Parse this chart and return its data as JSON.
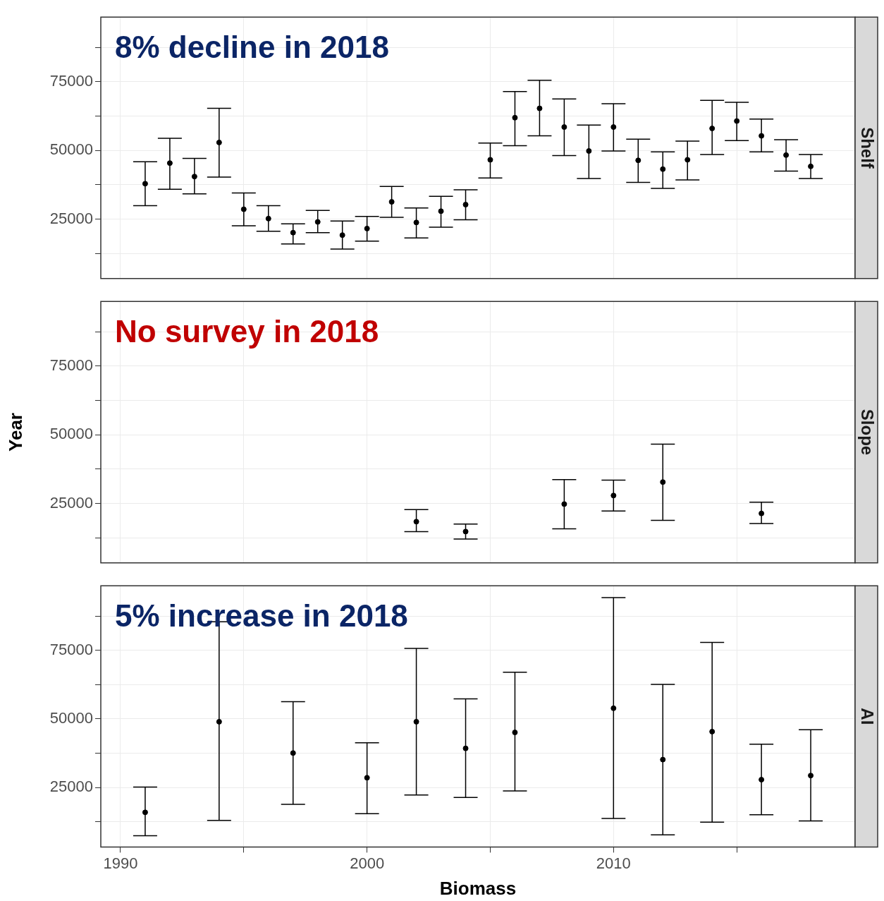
{
  "chart_data": [
    {
      "type": "scatter",
      "title": "8% decline in 2018",
      "subtitle": "Shelf",
      "marker": "circle",
      "grid": true,
      "legend": false,
      "tick_labels": "y",
      "xlim": [
        1989.2,
        2019.8
      ],
      "ylim": [
        3400,
        98500
      ],
      "xticks": [
        1990,
        {
          "value": 1995,
          "label": null
        },
        2000,
        {
          "value": 2005,
          "label": null
        },
        2010,
        {
          "value": 2015,
          "label": null
        }
      ],
      "yticks": [
        {
          "value": 12500,
          "label": null
        },
        25000,
        {
          "value": 37500,
          "label": null
        },
        50000,
        {
          "value": 62500,
          "label": null
        },
        75000,
        {
          "value": 87500,
          "label": null
        }
      ],
      "series": [
        {
          "color": "#000000",
          "x": [
            1991,
            1992,
            1993,
            1994,
            1995,
            1996,
            1997,
            1998,
            1999,
            2000,
            2001,
            2002,
            2003,
            2004,
            2005,
            2006,
            2007,
            2008,
            2009,
            2010,
            2011,
            2012,
            2013,
            2014,
            2015,
            2016,
            2017,
            2018
          ],
          "values": [
            37900,
            45400,
            40500,
            52900,
            28600,
            25200,
            20100,
            24000,
            19200,
            21600,
            31300,
            23800,
            27900,
            30300,
            46600,
            61900,
            65300,
            58500,
            49800,
            58500,
            46400,
            43200,
            46600,
            58000,
            60700,
            55300,
            48300,
            44200
          ],
          "errors": [
            [
              29900,
              45900
            ],
            [
              35900,
              54400
            ],
            [
              34200,
              47100
            ],
            [
              40300,
              65300
            ],
            [
              22600,
              34500
            ],
            [
              20600,
              29900
            ],
            [
              16000,
              23300
            ],
            [
              20100,
              28200
            ],
            [
              14100,
              24300
            ],
            [
              17000,
              26000
            ],
            [
              25700,
              36900
            ],
            [
              18200,
              29100
            ],
            [
              22100,
              33300
            ],
            [
              24800,
              35700
            ],
            [
              40000,
              52700
            ],
            [
              51700,
              71400
            ],
            [
              55300,
              75500
            ],
            [
              48100,
              68700
            ],
            [
              39800,
              59200
            ],
            [
              49800,
              67000
            ],
            [
              38400,
              54100
            ],
            [
              36200,
              49500
            ],
            [
              39300,
              53400
            ],
            [
              48500,
              68200
            ],
            [
              53600,
              67500
            ],
            [
              49500,
              61400
            ],
            [
              42500,
              53900
            ],
            [
              39800,
              48500
            ]
          ]
        }
      ]
    },
    {
      "type": "scatter",
      "title": "No survey in 2018",
      "subtitle": "Slope",
      "ylabel": "Year",
      "marker": "circle",
      "grid": true,
      "legend": false,
      "tick_labels": "y",
      "xlim": [
        1989.2,
        2019.8
      ],
      "ylim": [
        3400,
        98500
      ],
      "xticks": [
        1990,
        {
          "value": 1995,
          "label": null
        },
        2000,
        {
          "value": 2005,
          "label": null
        },
        2010,
        {
          "value": 2015,
          "label": null
        }
      ],
      "yticks": [
        {
          "value": 12500,
          "label": null
        },
        25000,
        {
          "value": 37500,
          "label": null
        },
        50000,
        {
          "value": 62500,
          "label": null
        },
        75000,
        {
          "value": 87500,
          "label": null
        }
      ],
      "series": [
        {
          "color": "#000000",
          "x": [
            2002,
            2004,
            2008,
            2010,
            2012,
            2016
          ],
          "values": [
            18400,
            14800,
            24800,
            27900,
            32800,
            21400
          ],
          "errors": [
            [
              14800,
              22800
            ],
            [
              12100,
              17500
            ],
            [
              15800,
              33700
            ],
            [
              22300,
              33500
            ],
            [
              18900,
              46600
            ],
            [
              17700,
              25500
            ]
          ]
        }
      ]
    },
    {
      "type": "scatter",
      "title": "5% increase in 2018",
      "subtitle": "AI",
      "xlabel": "Biomass",
      "marker": "circle",
      "grid": true,
      "legend": false,
      "xlim": [
        1989.2,
        2019.8
      ],
      "ylim": [
        3400,
        98500
      ],
      "xticks": [
        1990,
        {
          "value": 1995,
          "label": null
        },
        2000,
        {
          "value": 2005,
          "label": null
        },
        2010,
        {
          "value": 2015,
          "label": null
        }
      ],
      "yticks": [
        {
          "value": 12500,
          "label": null
        },
        25000,
        {
          "value": 37500,
          "label": null
        },
        50000,
        {
          "value": 62500,
          "label": null
        },
        75000,
        {
          "value": 87500,
          "label": null
        }
      ],
      "series": [
        {
          "color": "#000000",
          "x": [
            1991,
            1994,
            1997,
            2000,
            2002,
            2004,
            2006,
            2010,
            2012,
            2014,
            2016,
            2018
          ],
          "values": [
            16000,
            49000,
            37600,
            28600,
            49000,
            39300,
            45100,
            53900,
            35200,
            45400,
            27900,
            29400
          ],
          "errors": [
            [
              7500,
              25200
            ],
            [
              13100,
              85400
            ],
            [
              18900,
              56300
            ],
            [
              15500,
              41300
            ],
            [
              22300,
              75700
            ],
            [
              21400,
              57300
            ],
            [
              23800,
              67000
            ],
            [
              13800,
              94200
            ],
            [
              7800,
              62600
            ],
            [
              12400,
              77900
            ],
            [
              15100,
              40800
            ],
            [
              12900,
              46100
            ]
          ]
        }
      ]
    }
  ]
}
